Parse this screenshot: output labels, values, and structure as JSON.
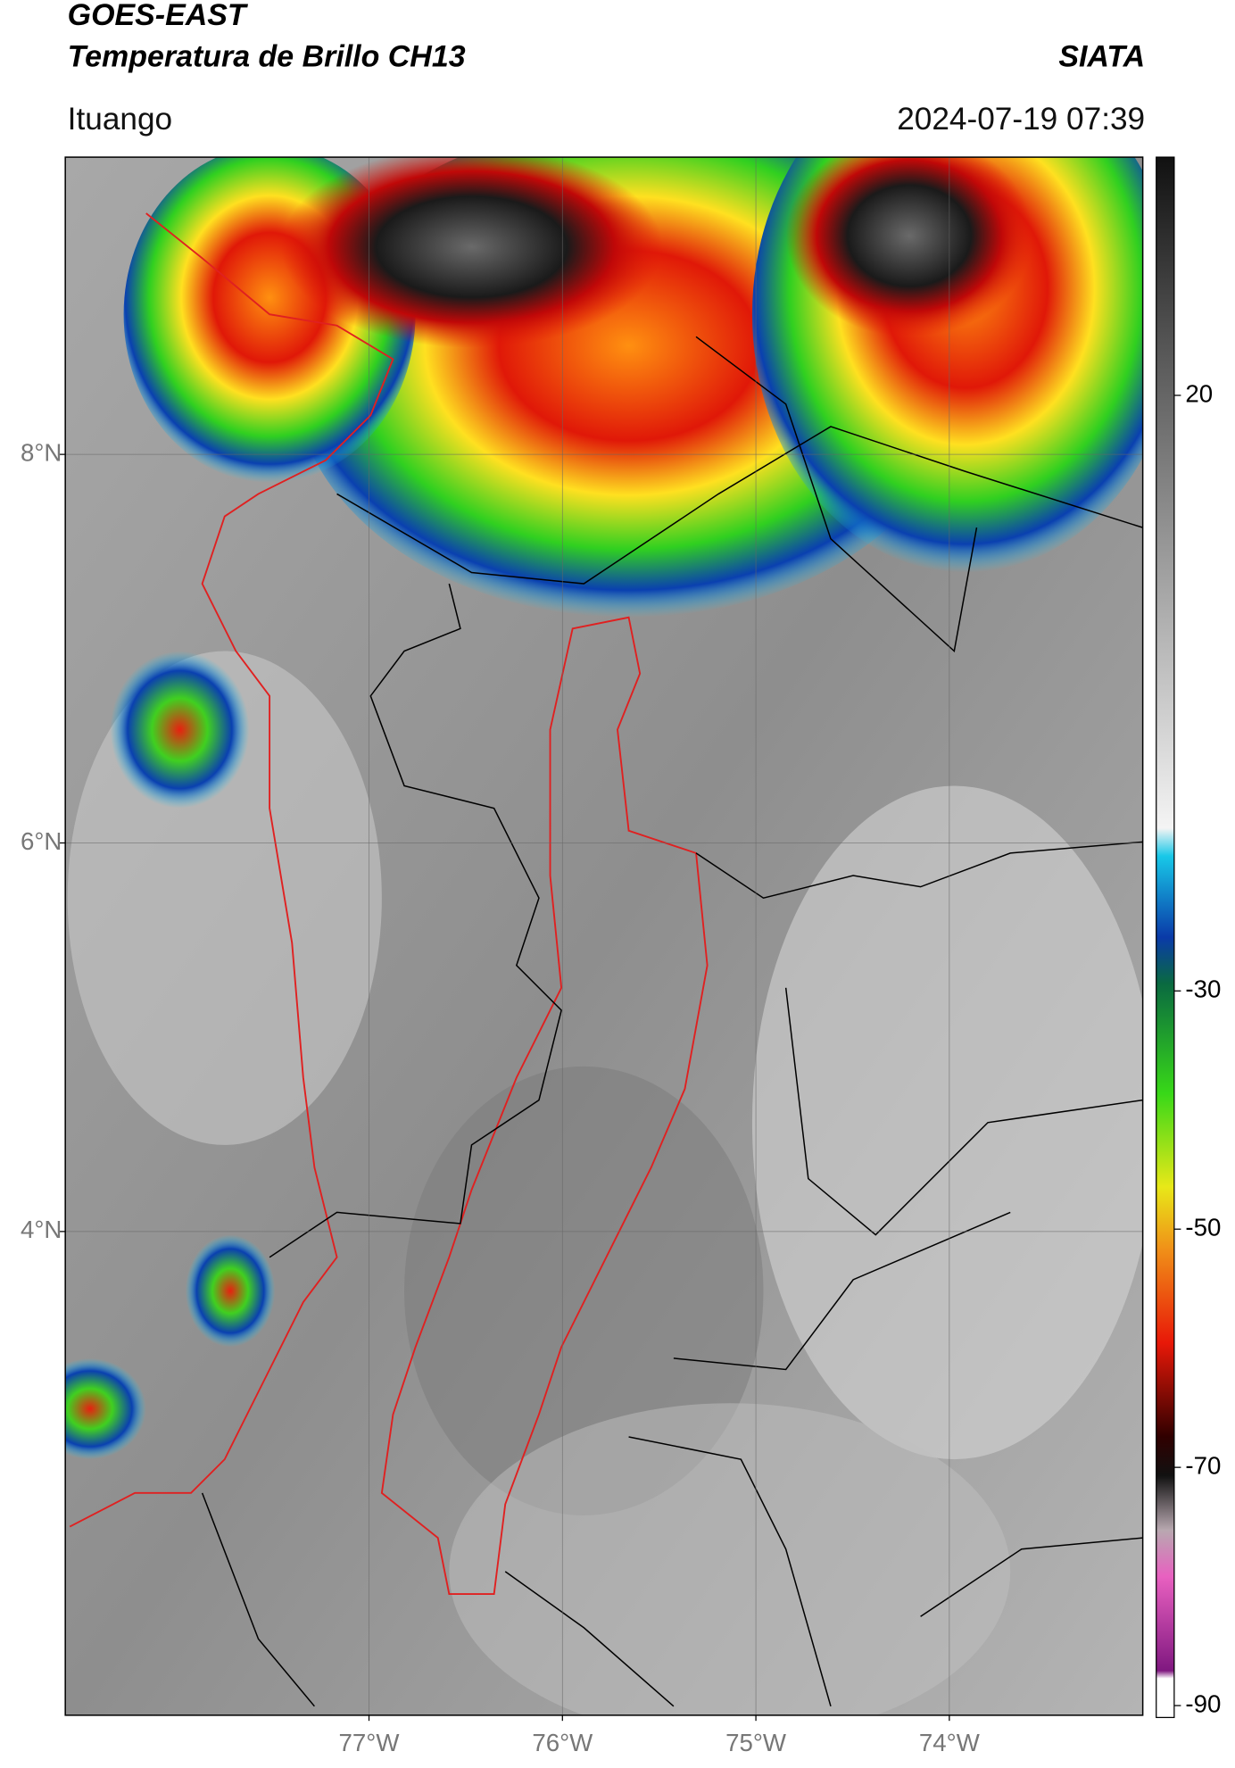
{
  "header": {
    "title": "GOES-EAST",
    "subtitle": "Temperatura de Brillo CH13",
    "brand": "SIATA",
    "location": "Ituango",
    "datetime": "2024-07-19 07:39"
  },
  "map": {
    "lonlim": [
      -78.57,
      -73.0
    ],
    "latlim": [
      1.51,
      9.53
    ],
    "lonticks": [
      {
        "value": -77,
        "label": "77°W"
      },
      {
        "value": -76,
        "label": "76°W"
      },
      {
        "value": -75,
        "label": "75°W"
      },
      {
        "value": -74,
        "label": "74°W"
      }
    ],
    "latticks": [
      {
        "value": 4,
        "label": "4°N"
      },
      {
        "value": 6,
        "label": "6°N"
      },
      {
        "value": 8,
        "label": "8°N"
      }
    ],
    "grid": true
  },
  "colorbar": {
    "clim": [
      -91,
      40
    ],
    "ticks": [
      20,
      -30,
      -50,
      -70,
      -90
    ]
  }
}
